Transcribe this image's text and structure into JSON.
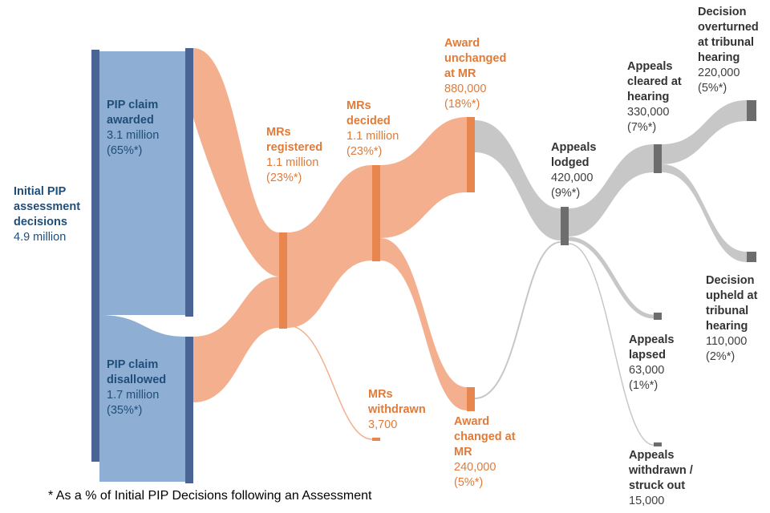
{
  "diagram": {
    "initial": {
      "title": "Initial PIP\nassessment\ndecisions",
      "value": "4.9 million",
      "value_num": 4900000
    },
    "awarded": {
      "title": "PIP claim\nawarded",
      "value": "3.1 million",
      "pct": "(65%*)",
      "value_num": 3100000
    },
    "disallowed": {
      "title": "PIP claim\ndisallowed",
      "value": "1.7 million",
      "pct": "(35%*)",
      "value_num": 1700000
    },
    "mrs_registered": {
      "title": "MRs\nregistered",
      "value": "1.1 million",
      "pct": "(23%*)",
      "value_num": 1100000
    },
    "mrs_decided": {
      "title": "MRs\ndecided",
      "value": "1.1 million",
      "pct": "(23%*)",
      "value_num": 1100000
    },
    "mrs_withdrawn": {
      "title": "MRs\nwithdrawn",
      "value": "3,700",
      "value_num": 3700
    },
    "award_unchanged": {
      "title": "Award\nunchanged\nat MR",
      "value": "880,000",
      "pct": "(18%*)",
      "value_num": 880000
    },
    "award_changed": {
      "title": "Award\nchanged at\nMR",
      "value": "240,000",
      "pct": "(5%*)",
      "value_num": 240000
    },
    "appeals_lodged": {
      "title": "Appeals\nlodged",
      "value": "420,000",
      "pct": "(9%*)",
      "value_num": 420000
    },
    "appeals_cleared": {
      "title": "Appeals\ncleared at\nhearing",
      "value": "330,000",
      "pct": "(7%*)",
      "value_num": 330000
    },
    "appeals_lapsed": {
      "title": "Appeals\nlapsed",
      "value": "63,000",
      "pct": "(1%*)",
      "value_num": 63000
    },
    "appeals_withdrawn": {
      "title": "Appeals\nwithdrawn /\nstruck out",
      "value": "15,000",
      "value_num": 15000
    },
    "overturned": {
      "title": "Decision\noverturned\nat tribunal\nhearing",
      "value": "220,000",
      "pct": "(5%*)",
      "value_num": 220000
    },
    "upheld": {
      "title": "Decision\nupheld at\ntribunal\nhearing",
      "value": "110,000",
      "pct": "(2%*)",
      "value_num": 110000
    }
  },
  "colors": {
    "blue_node": "#4a6495",
    "blue_flow": "#8eaed3",
    "orange_node": "#e8864f",
    "orange_flow": "#f4b08e",
    "grey_node": "#6d6d6d",
    "grey_flow": "#c7c7c7"
  },
  "footnote": "* As a % of Initial PIP Decisions following an Assessment"
}
